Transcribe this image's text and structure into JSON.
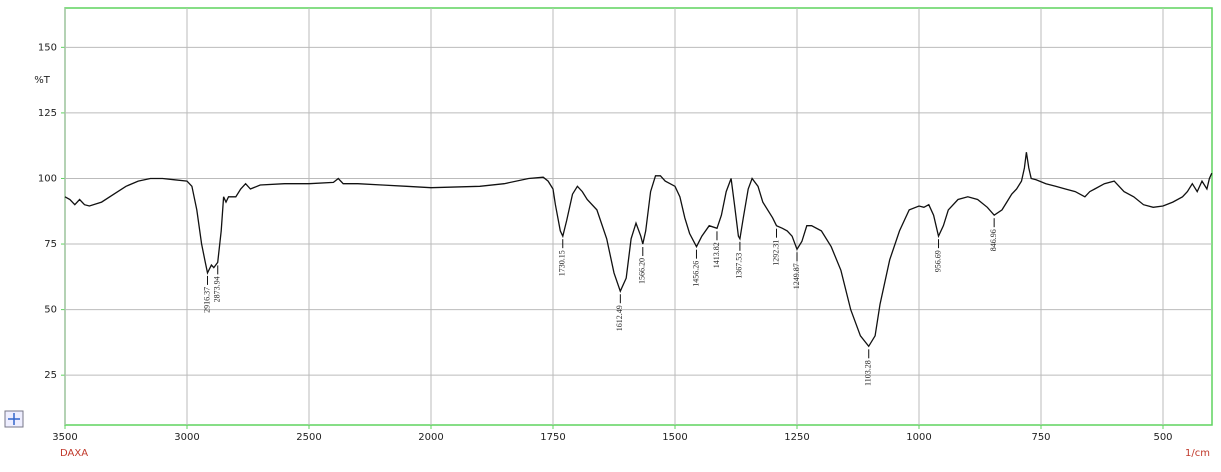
{
  "chart_data": {
    "type": "line",
    "ylabel": "%T",
    "xlabel": "1/cm",
    "xlabel_left": "DAXA",
    "xlim": [
      3500,
      400
    ],
    "xticks": [
      3500,
      3000,
      2500,
      2000,
      1750,
      1500,
      1250,
      1000,
      750,
      500
    ],
    "ylim": [
      6,
      165
    ],
    "yticks": [
      25,
      50,
      75,
      100,
      125,
      150
    ],
    "grid": true,
    "color": "#111111",
    "x": [
      3500,
      3480,
      3460,
      3440,
      3420,
      3400,
      3350,
      3300,
      3250,
      3200,
      3150,
      3100,
      3050,
      3000,
      2980,
      2960,
      2940,
      2925,
      2916,
      2900,
      2890,
      2874,
      2860,
      2850,
      2840,
      2830,
      2800,
      2780,
      2760,
      2740,
      2700,
      2600,
      2500,
      2400,
      2380,
      2360,
      2300,
      2200,
      2100,
      2000,
      1900,
      1850,
      1800,
      1770,
      1760,
      1750,
      1745,
      1735,
      1730,
      1722,
      1710,
      1700,
      1690,
      1680,
      1660,
      1640,
      1625,
      1612,
      1600,
      1590,
      1580,
      1570,
      1566,
      1560,
      1550,
      1540,
      1530,
      1520,
      1510,
      1500,
      1490,
      1480,
      1470,
      1456,
      1445,
      1430,
      1414,
      1405,
      1395,
      1385,
      1378,
      1370,
      1367,
      1360,
      1350,
      1342,
      1330,
      1320,
      1300,
      1292,
      1280,
      1270,
      1260,
      1250,
      1240,
      1230,
      1220,
      1200,
      1180,
      1160,
      1140,
      1120,
      1103,
      1090,
      1080,
      1060,
      1040,
      1020,
      1000,
      990,
      980,
      970,
      960,
      950,
      940,
      920,
      900,
      880,
      860,
      846,
      830,
      820,
      810,
      800,
      790,
      784,
      780,
      775,
      770,
      760,
      740,
      720,
      700,
      680,
      660,
      650,
      640,
      620,
      600,
      580,
      560,
      540,
      520,
      500,
      480,
      460,
      450,
      440,
      430,
      420,
      410,
      405,
      400
    ],
    "values": [
      93,
      92,
      90,
      92,
      90,
      89.5,
      91,
      94,
      97,
      99,
      100,
      100,
      99.5,
      99,
      97,
      88,
      75,
      68,
      64,
      67,
      66,
      68,
      80,
      93,
      91,
      93,
      93,
      96,
      98,
      96,
      97.5,
      98,
      98,
      98.5,
      100,
      98,
      98,
      97.5,
      97,
      96.5,
      97,
      98,
      100,
      100.5,
      99,
      96,
      90,
      80,
      78,
      84,
      94,
      97,
      95,
      92,
      88,
      77,
      64,
      57,
      62,
      77,
      83,
      78,
      75,
      80,
      95,
      101,
      101,
      99,
      98,
      97,
      93,
      85,
      79,
      74,
      78,
      82,
      81,
      86,
      95,
      100,
      90,
      78,
      77,
      85,
      96,
      100,
      97,
      91,
      85,
      82,
      81,
      80,
      78,
      73,
      76,
      82,
      82,
      80,
      74,
      65,
      50,
      40,
      36,
      40,
      52,
      69,
      80,
      88,
      89.5,
      89,
      90,
      86,
      78,
      82,
      88,
      92,
      93,
      92,
      89,
      86,
      88,
      91,
      94,
      96,
      99,
      104,
      110,
      104,
      100,
      99.5,
      98,
      97,
      96,
      95,
      93,
      95,
      96,
      98,
      99,
      95,
      93,
      90,
      89,
      89.5,
      91,
      93,
      95,
      98,
      95,
      99,
      96,
      100,
      102
    ],
    "annotations": [
      {
        "label": "2916.37",
        "x": 2916,
        "y": 64
      },
      {
        "label": "2873.94",
        "x": 2874,
        "y": 68
      },
      {
        "label": "1730.15",
        "x": 1730,
        "y": 78
      },
      {
        "label": "1612.49",
        "x": 1612,
        "y": 57
      },
      {
        "label": "1566.20",
        "x": 1566,
        "y": 75
      },
      {
        "label": "1456.26",
        "x": 1456,
        "y": 74
      },
      {
        "label": "1413.82",
        "x": 1414,
        "y": 81
      },
      {
        "label": "1367.53",
        "x": 1367,
        "y": 77
      },
      {
        "label": "1292.31",
        "x": 1292,
        "y": 82
      },
      {
        "label": "1249.87",
        "x": 1250,
        "y": 73
      },
      {
        "label": "1103.28",
        "x": 1103,
        "y": 36
      },
      {
        "label": "956.69",
        "x": 960,
        "y": 78
      },
      {
        "label": "846.96",
        "x": 846,
        "y": 86
      }
    ]
  }
}
